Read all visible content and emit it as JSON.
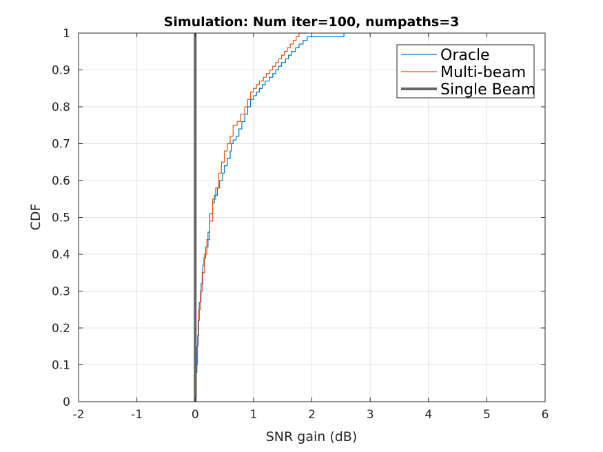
{
  "chart_data": {
    "type": "line",
    "title": "Simulation: Num iter=100, numpaths=3",
    "xlabel": "SNR gain (dB)",
    "ylabel": "CDF",
    "xlim": [
      -2,
      6
    ],
    "ylim": [
      0,
      1
    ],
    "xticks": [
      -2,
      -1,
      0,
      1,
      2,
      3,
      4,
      5,
      6
    ],
    "yticks": [
      0,
      0.1,
      0.2,
      0.3,
      0.4,
      0.5,
      0.6,
      0.7,
      0.8,
      0.9,
      1
    ],
    "xtick_labels": [
      "-2",
      "-1",
      "0",
      "1",
      "2",
      "3",
      "4",
      "5",
      "6"
    ],
    "ytick_labels": [
      "0",
      "0.1",
      "0.2",
      "0.3",
      "0.4",
      "0.5",
      "0.6",
      "0.7",
      "0.8",
      "0.9",
      "1"
    ],
    "grid": true,
    "legend_position": "top-right",
    "series": [
      {
        "name": "Oracle",
        "color": "#0072BD",
        "style": "step",
        "x": [
          0.0,
          0.02,
          0.03,
          0.05,
          0.07,
          0.1,
          0.13,
          0.15,
          0.18,
          0.22,
          0.25,
          0.3,
          0.33,
          0.38,
          0.42,
          0.47,
          0.5,
          0.55,
          0.6,
          0.62,
          0.65,
          0.7,
          0.75,
          0.8,
          0.85,
          0.9,
          0.95,
          1.0,
          1.05,
          1.1,
          1.15,
          1.2,
          1.27,
          1.33,
          1.38,
          1.43,
          1.48,
          1.55,
          1.6,
          1.65,
          1.72,
          1.78,
          1.85,
          1.92,
          2.0,
          2.55
        ],
        "y": [
          0.01,
          0.08,
          0.15,
          0.22,
          0.27,
          0.32,
          0.37,
          0.39,
          0.42,
          0.46,
          0.51,
          0.54,
          0.56,
          0.58,
          0.6,
          0.62,
          0.64,
          0.66,
          0.68,
          0.7,
          0.71,
          0.72,
          0.74,
          0.76,
          0.78,
          0.8,
          0.82,
          0.83,
          0.84,
          0.85,
          0.86,
          0.87,
          0.88,
          0.89,
          0.9,
          0.91,
          0.92,
          0.93,
          0.94,
          0.95,
          0.96,
          0.97,
          0.98,
          0.99,
          0.99,
          1.0
        ]
      },
      {
        "name": "Multi-beam",
        "color": "#D95319",
        "style": "step",
        "x": [
          0.0,
          0.02,
          0.04,
          0.06,
          0.09,
          0.12,
          0.16,
          0.2,
          0.25,
          0.3,
          0.35,
          0.4,
          0.45,
          0.5,
          0.55,
          0.6,
          0.65,
          0.72,
          0.78,
          0.85,
          0.9,
          0.95,
          1.0,
          1.05,
          1.1,
          1.17,
          1.22,
          1.28,
          1.33,
          1.38,
          1.43,
          1.48,
          1.53,
          1.58,
          1.63,
          1.68,
          1.73,
          1.78,
          1.85,
          1.92
        ],
        "y": [
          0.02,
          0.1,
          0.18,
          0.25,
          0.3,
          0.35,
          0.4,
          0.44,
          0.49,
          0.55,
          0.58,
          0.62,
          0.65,
          0.68,
          0.7,
          0.72,
          0.75,
          0.76,
          0.78,
          0.8,
          0.82,
          0.84,
          0.85,
          0.86,
          0.87,
          0.88,
          0.89,
          0.9,
          0.91,
          0.92,
          0.93,
          0.94,
          0.95,
          0.96,
          0.97,
          0.98,
          0.99,
          1.0,
          1.0,
          1.0
        ]
      },
      {
        "name": "Single Beam",
        "color": "#666666",
        "style": "vertical",
        "x": [
          0,
          0
        ],
        "y": [
          0,
          1
        ]
      }
    ]
  }
}
